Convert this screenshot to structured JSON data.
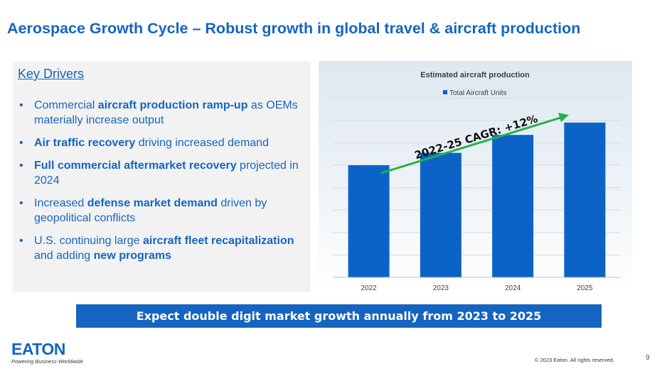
{
  "slide": {
    "title": "Aerospace Growth Cycle – Robust growth in global travel & aircraft production"
  },
  "drivers": {
    "heading": "Key Drivers",
    "bullet": "•",
    "items": [
      {
        "pre": "Commercial ",
        "bold": "aircraft production ramp-up",
        "post": " as OEMs materially increase output",
        "bold2": "",
        "post2": ""
      },
      {
        "pre": "",
        "bold": "Air traffic recovery",
        "post": " driving increased demand",
        "bold2": "",
        "post2": ""
      },
      {
        "pre": "",
        "bold": "Full commercial aftermarket recovery",
        "post": " projected in 2024",
        "bold2": "",
        "post2": ""
      },
      {
        "pre": "Increased ",
        "bold": "defense market demand",
        "post": " driven by geopolitical conflicts",
        "bold2": "",
        "post2": ""
      },
      {
        "pre": "U.S. continuing large ",
        "bold": "aircraft fleet recapitalization",
        "post": " and adding ",
        "bold2": "new programs",
        "post2": ""
      }
    ]
  },
  "chart_data": {
    "type": "bar",
    "title": "Estimated aircraft production",
    "legend": [
      "Total Aircraft Units"
    ],
    "categories": [
      "2022",
      "2023",
      "2024",
      "2025"
    ],
    "series": [
      {
        "name": "Total Aircraft Units",
        "values": [
          100,
          111,
          127,
          138
        ]
      }
    ],
    "ylim": [
      0,
      160
    ],
    "yaxis_labels_shown": false,
    "grid": true,
    "annotation": "2022-25 CAGR: +12%",
    "bar_color": "#0b63c8",
    "arrow_color": "#22b14c"
  },
  "banner": {
    "text": "Expect double digit market growth annually from 2023 to 2025"
  },
  "footer": {
    "logo_text": "EATON",
    "tagline": "Powering Business Worldwide",
    "copyright": "© 2023 Eaton. All rights reserved.",
    "page_number": "9"
  }
}
